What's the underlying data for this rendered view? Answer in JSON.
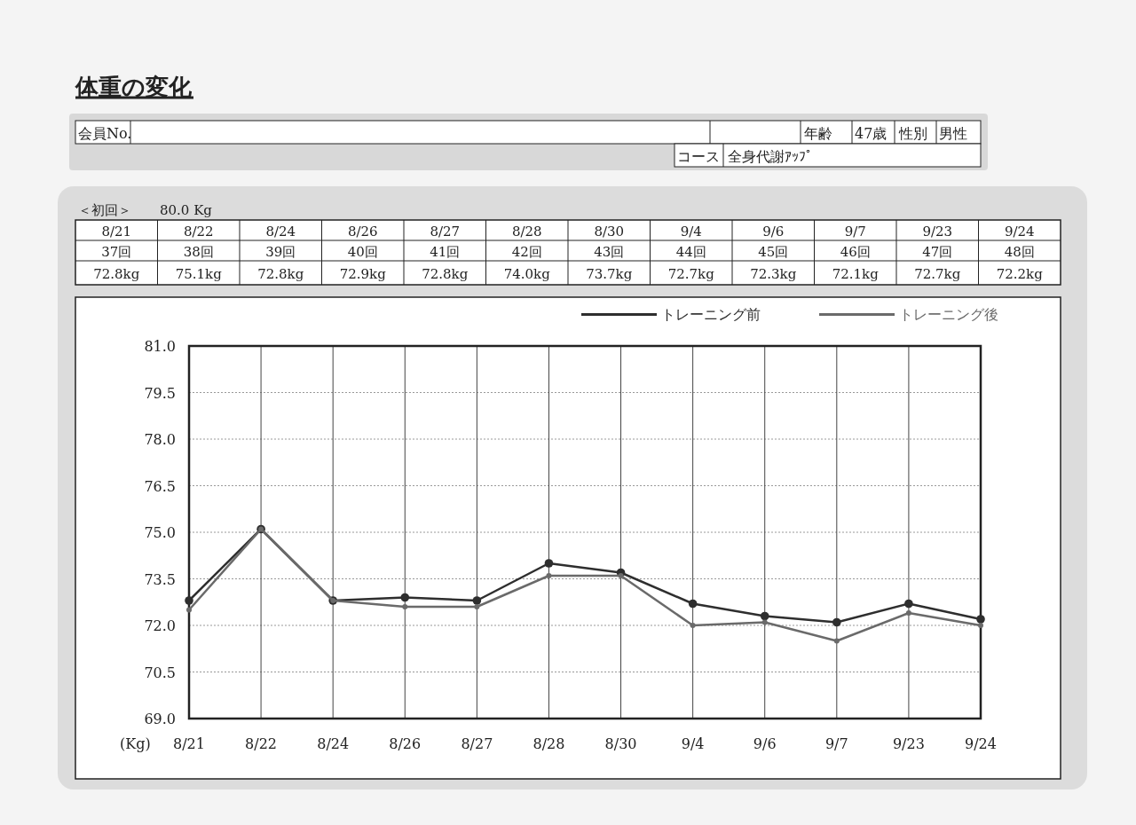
{
  "chart_data": {
    "type": "line",
    "title": "体重の変化",
    "ylabel": "(Kg)",
    "categories": [
      "8/21",
      "8/22",
      "8/24",
      "8/26",
      "8/27",
      "8/28",
      "8/30",
      "9/4",
      "9/6",
      "9/7",
      "9/23",
      "9/24"
    ],
    "series": [
      {
        "name": "トレーニング前",
        "color": "#2e2e2e",
        "values": [
          72.8,
          75.1,
          72.8,
          72.9,
          72.8,
          74.0,
          73.7,
          72.7,
          72.3,
          72.1,
          72.7,
          72.2
        ]
      },
      {
        "name": "トレーニング後",
        "color": "#6a6a6a",
        "values": [
          72.5,
          75.1,
          72.8,
          72.6,
          72.6,
          73.6,
          73.6,
          72.0,
          72.1,
          71.5,
          72.4,
          72.0
        ]
      }
    ],
    "ylim": [
      69,
      81
    ],
    "yticks": [
      {
        "value": 69,
        "label": "69.0"
      },
      {
        "value": 70.5,
        "label": "70.5"
      },
      {
        "value": 72,
        "label": "72.0"
      },
      {
        "value": 73.5,
        "label": "73.5"
      },
      {
        "value": 75,
        "label": "75.0"
      },
      {
        "value": 76.5,
        "label": "76.5"
      },
      {
        "value": 78,
        "label": "78.0"
      },
      {
        "value": 79.5,
        "label": "79.5"
      },
      {
        "value": 81,
        "label": "81.0"
      }
    ],
    "grid": true,
    "legend": "top right",
    "marker": "circle",
    "line_style": "solid",
    "annotations": [
      "会員No.",
      "年齢",
      "47歳",
      "性別",
      "男性",
      "コース",
      "全身代謝ｱｯﾌﾟ",
      "＜初回＞",
      "80.0 Kg",
      "37回",
      "38回",
      "39回",
      "40回",
      "41回",
      "42回",
      "43回",
      "44回",
      "45回",
      "46回",
      "47回",
      "48回",
      "72.8kg",
      "75.1kg",
      "72.8kg",
      "72.9kg",
      "72.8kg",
      "74.0kg",
      "73.7kg",
      "72.7kg",
      "72.3kg",
      "72.1kg",
      "72.7kg",
      "72.2kg"
    ]
  }
}
